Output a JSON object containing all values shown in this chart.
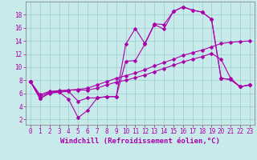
{
  "title": "",
  "xlabel": "Windchill (Refroidissement éolien,°C)",
  "ylabel": "",
  "bg_color": "#c8eaea",
  "line_color": "#aa00aa",
  "grid_color": "#99cccc",
  "x_ticks": [
    0,
    1,
    2,
    3,
    4,
    5,
    6,
    7,
    8,
    9,
    10,
    11,
    12,
    13,
    14,
    15,
    16,
    17,
    18,
    19,
    20,
    21,
    22,
    23
  ],
  "y_ticks": [
    2,
    4,
    6,
    8,
    10,
    12,
    14,
    16,
    18
  ],
  "xlim": [
    -0.5,
    23.5
  ],
  "ylim": [
    1.2,
    20.0
  ],
  "series": [
    [
      7.8,
      5.2,
      6.1,
      6.2,
      5.1,
      2.3,
      3.4,
      5.3,
      5.5,
      5.5,
      10.9,
      11.0,
      13.5,
      16.5,
      15.8,
      18.5,
      19.2,
      18.7,
      18.4,
      17.3,
      8.3,
      8.1,
      7.0,
      7.3
    ],
    [
      7.8,
      5.5,
      6.2,
      6.3,
      6.5,
      6.5,
      6.5,
      6.8,
      7.3,
      7.7,
      8.0,
      8.4,
      8.8,
      9.3,
      9.8,
      10.3,
      10.8,
      11.2,
      11.6,
      12.1,
      11.2,
      8.3,
      7.0,
      7.3
    ],
    [
      7.8,
      5.8,
      6.3,
      6.4,
      6.5,
      6.6,
      6.8,
      7.3,
      7.8,
      8.3,
      8.7,
      9.1,
      9.6,
      10.2,
      10.7,
      11.2,
      11.8,
      12.2,
      12.6,
      13.1,
      13.6,
      13.8,
      13.9,
      14.0
    ],
    [
      7.8,
      5.2,
      6.0,
      6.2,
      6.3,
      4.8,
      5.3,
      5.3,
      5.5,
      5.5,
      13.5,
      15.9,
      13.6,
      16.6,
      16.5,
      18.5,
      19.2,
      18.7,
      18.4,
      17.3,
      8.3,
      8.1,
      7.0,
      7.3
    ]
  ],
  "marker": "D",
  "markersize": 2.5,
  "linewidth": 0.8,
  "tick_fontsize": 5.5,
  "label_fontsize": 6.5
}
